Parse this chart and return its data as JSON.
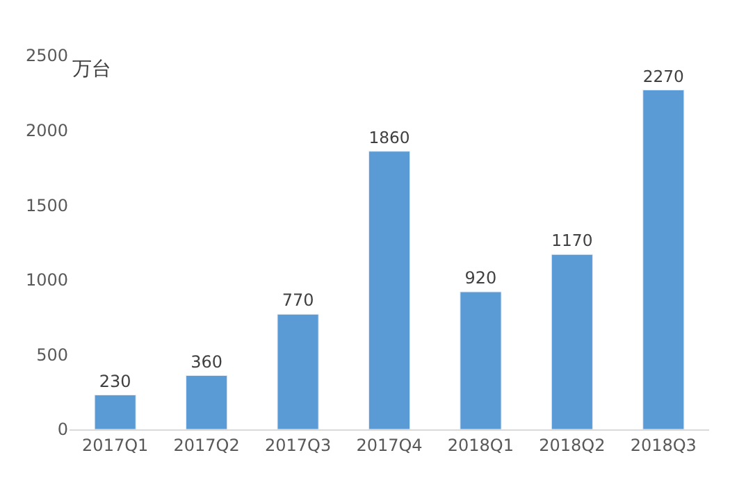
{
  "chart_data": {
    "type": "bar",
    "ylabel": "万台",
    "categories": [
      "2017Q1",
      "2017Q2",
      "2017Q3",
      "2017Q4",
      "2018Q1",
      "2018Q2",
      "2018Q3"
    ],
    "values": [
      230,
      360,
      770,
      1860,
      920,
      1170,
      2270
    ],
    "color": "#5b9bd5",
    "ylim": [
      0,
      2500
    ],
    "yticks": [
      0,
      500,
      1000,
      1500,
      2000,
      2500
    ],
    "data_labels": true,
    "grid": false,
    "legend": false
  }
}
